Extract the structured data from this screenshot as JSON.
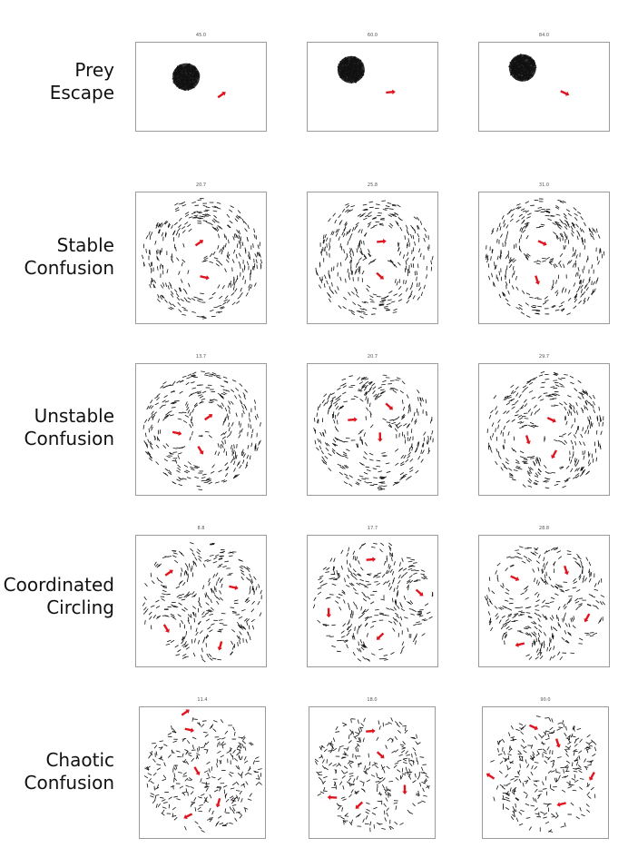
{
  "rows": [
    {
      "label_lines": [
        "Prey",
        "Escape"
      ],
      "titles": [
        "45.0",
        "60.0",
        "84.0"
      ]
    },
    {
      "label_lines": [
        "Stable",
        "Confusion"
      ],
      "titles": [
        "20.7",
        "25.8",
        "31.0"
      ]
    },
    {
      "label_lines": [
        "Unstable",
        "Confusion"
      ],
      "titles": [
        "13.7",
        "20.7",
        "29.7"
      ]
    },
    {
      "label_lines": [
        "Coordinated",
        "Circling"
      ],
      "titles": [
        "8.8",
        "17.7",
        "28.8"
      ]
    },
    {
      "label_lines": [
        "Chaotic",
        "Confusion"
      ],
      "titles": [
        "11.4",
        "18.0",
        "90.0"
      ]
    }
  ],
  "colors": {
    "prey": "#111111",
    "predator": "#e0141e",
    "frame": "#9a9a9a"
  }
}
